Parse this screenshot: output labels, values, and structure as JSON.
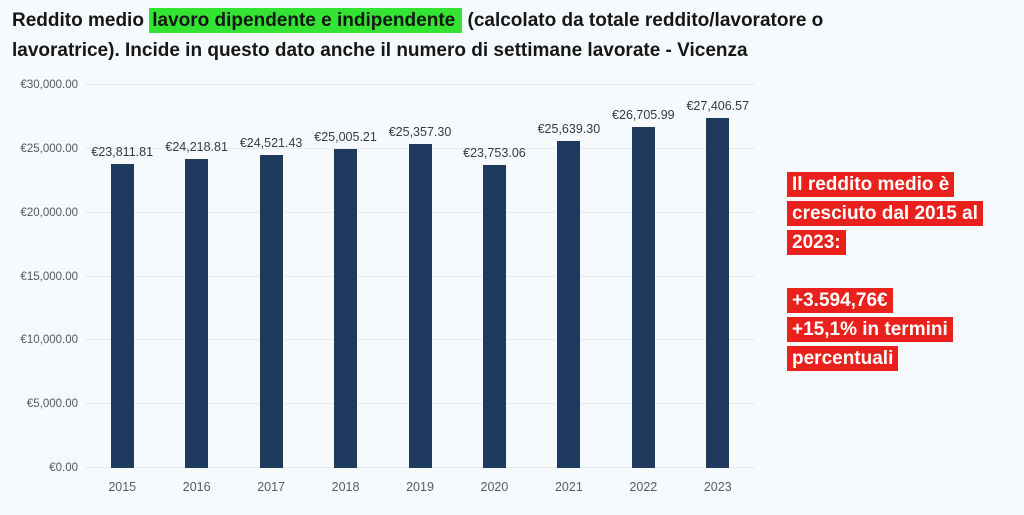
{
  "title": {
    "prefix": "Reddito medio ",
    "highlight": "lavoro dipendente e indipendente",
    "suffix": " (calcolato da totale reddito/lavoratore o\nlavoratrice). Incide in questo dato anche il numero di settimane lavorate - Vicenza"
  },
  "chart_data": {
    "type": "bar",
    "categories": [
      "2015",
      "2016",
      "2017",
      "2018",
      "2019",
      "2020",
      "2021",
      "2022",
      "2023"
    ],
    "values": [
      23811.81,
      24218.81,
      24521.43,
      25005.21,
      25357.3,
      23753.06,
      25639.3,
      26705.99,
      27406.57
    ],
    "bar_labels": [
      "€23,811.81",
      "€24,218.81",
      "€24,521.43",
      "€25,005.21",
      "€25,357.30",
      "€23,753.06",
      "€25,639.30",
      "€26,705.99",
      "€27,406.57"
    ],
    "title": "Reddito medio lavoro dipendente e indipendente (calcolato da totale reddito/lavoratore o lavoratrice). Incide in questo dato anche il numero di settimane lavorate - Vicenza",
    "xlabel": "",
    "ylabel": "",
    "ylim": [
      0,
      30000
    ],
    "yticks": [
      0,
      5000,
      10000,
      15000,
      20000,
      25000,
      30000
    ],
    "ytick_labels": [
      "€0.00",
      "€5,000.00",
      "€10,000.00",
      "€15,000.00",
      "€20,000.00",
      "€25,000.00",
      "€30,000.00"
    ],
    "grid": true,
    "legend": "none",
    "bar_color": "#1e3a5f"
  },
  "annotation": {
    "heading": "Il reddito medio è\ncresciuto dal 2015 al\n2023:",
    "stats": "+3.594,76€\n+15,1% in termini\npercentuali"
  },
  "colors": {
    "highlight_green": "#33e433",
    "annotation_red": "#e9201c",
    "bar_navy": "#1e3a5f",
    "background": "#f7fafc",
    "gridline": "#e6e9ed"
  }
}
